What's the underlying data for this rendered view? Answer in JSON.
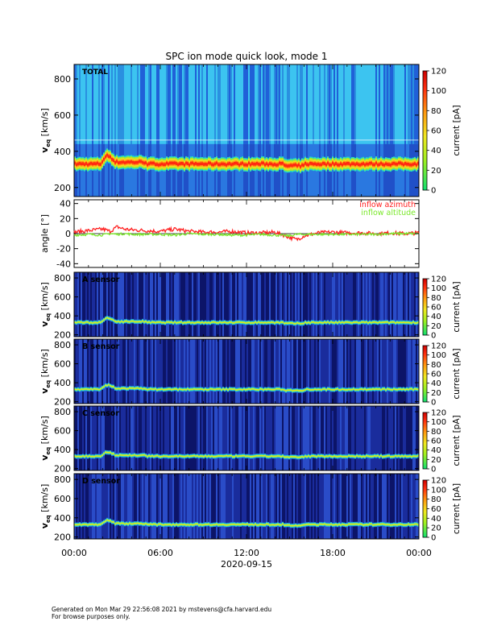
{
  "title": "SPC ion mode quick look, mode 1",
  "footer": {
    "line1": "Generated on Mon Mar 29 22:56:08 2021 by mstevens@cfa.harvard.edu",
    "line2": "For browse purposes only."
  },
  "colors": {
    "low": "#1a1ac8",
    "mid": "#22d0e8",
    "band": "#e0e020",
    "peak": "#ff2a10",
    "azimuth": "#ff2020",
    "altitude": "#7ae82a"
  },
  "chart_data": [
    {
      "type": "heatmap",
      "panel": "TOTAL",
      "ylabel_base": "v",
      "ylabel_sub": "eq",
      "ylabel_unit": "[km/s]",
      "yticks": [
        200,
        400,
        600,
        800
      ],
      "ylim": [
        150,
        880
      ],
      "colorbar": {
        "label": "current [pA]",
        "ticks": [
          0,
          20,
          40,
          60,
          80,
          100,
          120
        ],
        "range": [
          0,
          120
        ]
      },
      "background_level": 0.35,
      "band_peak_current": 105,
      "xlabels": [
        "00:00",
        "06:00",
        "12:00",
        "18:00",
        "00:00"
      ]
    },
    {
      "type": "line",
      "panel": "angle",
      "ylabel": "angle [°]",
      "yticks": [
        -40,
        -20,
        0,
        20,
        40
      ],
      "ylim": [
        -45,
        45
      ],
      "x_hours": [
        0,
        1,
        2,
        2.5,
        3,
        3.5,
        4,
        5,
        6,
        7,
        8,
        9,
        10,
        11,
        12,
        13,
        14,
        15,
        15.5,
        16,
        17,
        18,
        19,
        20,
        21,
        22,
        23,
        24
      ],
      "series": [
        {
          "name": "inflow azimuth",
          "values": [
            2,
            4,
            6,
            3,
            9,
            6,
            5,
            4,
            3,
            6,
            3,
            2,
            2,
            3,
            1,
            1,
            2,
            -5,
            -8,
            -3,
            1,
            2,
            1,
            1,
            0,
            1,
            0,
            1
          ]
        },
        {
          "name": "inflow altitude",
          "values": [
            -2,
            -1,
            -2,
            0,
            -1,
            0,
            -1,
            -1,
            -1,
            -2,
            0,
            -1,
            -1,
            -2,
            -2,
            -1,
            -2,
            -3,
            -1,
            -1,
            -1,
            -1,
            -1,
            -1,
            -1,
            0,
            0,
            0
          ]
        }
      ]
    },
    {
      "type": "heatmap",
      "panel": "A sensor",
      "ylabel_base": "v",
      "ylabel_sub": "eq",
      "ylabel_unit": "[km/s]",
      "yticks": [
        200,
        400,
        600,
        800
      ],
      "ylim": [
        180,
        860
      ],
      "colorbar": {
        "label": "current [pA]",
        "ticks": [
          0,
          20,
          40,
          60,
          80,
          100,
          120
        ],
        "range": [
          0,
          120
        ]
      },
      "background_level": 0.1,
      "band_peak_current": 45
    },
    {
      "type": "heatmap",
      "panel": "B sensor",
      "ylabel_base": "v",
      "ylabel_sub": "eq",
      "ylabel_unit": "[km/s]",
      "yticks": [
        200,
        400,
        600,
        800
      ],
      "ylim": [
        180,
        860
      ],
      "colorbar": {
        "label": "current [pA]",
        "ticks": [
          0,
          20,
          40,
          60,
          80,
          100,
          120
        ],
        "range": [
          0,
          120
        ]
      },
      "background_level": 0.08,
      "band_peak_current": 45
    },
    {
      "type": "heatmap",
      "panel": "C sensor",
      "ylabel_base": "v",
      "ylabel_sub": "eq",
      "ylabel_unit": "[km/s]",
      "yticks": [
        200,
        400,
        600,
        800
      ],
      "ylim": [
        180,
        860
      ],
      "colorbar": {
        "label": "current [pA]",
        "ticks": [
          0,
          20,
          40,
          60,
          80,
          100,
          120
        ],
        "range": [
          0,
          120
        ]
      },
      "background_level": 0.12,
      "band_peak_current": 45
    },
    {
      "type": "heatmap",
      "panel": "D sensor",
      "ylabel_base": "v",
      "ylabel_sub": "eq",
      "ylabel_unit": "[km/s]",
      "yticks": [
        200,
        400,
        600,
        800
      ],
      "ylim": [
        180,
        860
      ],
      "colorbar": {
        "label": "current [pA]",
        "ticks": [
          0,
          20,
          40,
          60,
          80,
          100,
          120
        ],
        "range": [
          0,
          120
        ]
      },
      "background_level": 0.08,
      "band_peak_current": 45
    }
  ],
  "xaxis": {
    "ticks": [
      "00:00",
      "06:00",
      "12:00",
      "18:00",
      "00:00"
    ],
    "date_label": "2020-09-15",
    "range_hours": [
      0,
      24
    ]
  }
}
